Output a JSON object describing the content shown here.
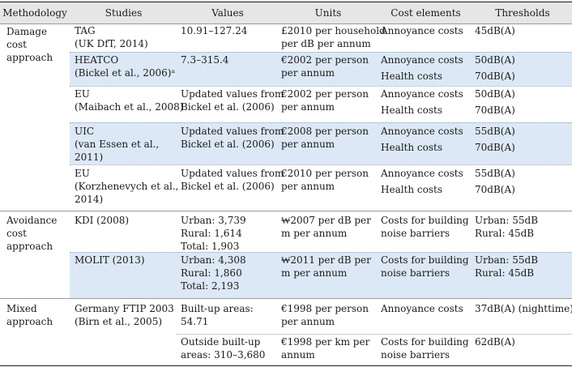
{
  "headers": {
    "methodology": "Methodology",
    "studies": "Studies",
    "values": "Values",
    "units": "Units",
    "cost": "Cost elements",
    "thresholds": "Thresholds"
  },
  "methodologies": {
    "damage": [
      "Damage",
      "cost",
      "approach"
    ],
    "avoidance": [
      "Avoidance",
      "cost",
      "approach"
    ],
    "mixed": [
      "Mixed",
      "approach"
    ]
  },
  "rows": [
    {
      "study": [
        "TAG",
        "(UK DfT, 2014)"
      ],
      "values": [
        "10.91–127.24"
      ],
      "units": [
        "£2010 per household",
        "per dB per annum"
      ],
      "cost": [
        "Annoyance costs"
      ],
      "thr": [
        "45dB(A)"
      ]
    },
    {
      "study": [
        "HEATCO",
        "(Bickel et al., 2006)ᵃ"
      ],
      "values": [
        "7.3–315.4"
      ],
      "units": [
        "€2002 per person",
        "per annum"
      ],
      "cost": [
        "Annoyance costs",
        "Health costs"
      ],
      "thr": [
        "50dB(A)",
        "70dB(A)"
      ]
    },
    {
      "study": [
        "EU",
        "(Maibach et al., 2008)"
      ],
      "values": [
        "Updated values from",
        "Bickel et al. (2006)"
      ],
      "units": [
        "€2002 per person",
        "per annum"
      ],
      "cost": [
        "Annoyance costs",
        "Health costs"
      ],
      "thr": [
        "50dB(A)",
        "70dB(A)"
      ]
    },
    {
      "study": [
        "UIC",
        "(van Essen et al.,",
        "2011)"
      ],
      "values": [
        "Updated values from",
        "Bickel et al. (2006)"
      ],
      "units": [
        "€2008 per person",
        "per annum"
      ],
      "cost": [
        "Annoyance costs",
        "Health costs"
      ],
      "thr": [
        "55dB(A)",
        "70dB(A)"
      ]
    },
    {
      "study": [
        "EU",
        "(Korzhenevych et al.,",
        "2014)"
      ],
      "values": [
        "Updated values from",
        "Bickel et al. (2006)"
      ],
      "units": [
        "€2010 per person",
        "per annum"
      ],
      "cost": [
        "Annoyance costs",
        "Health costs"
      ],
      "thr": [
        "55dB(A)",
        "70dB(A)"
      ]
    },
    {
      "study": [
        "KDI (2008)"
      ],
      "values": [
        "Urban: 3,739",
        "Rural: 1,614",
        "Total: 1,903"
      ],
      "units": [
        "₩2007 per dB per",
        "m per annum"
      ],
      "cost": [
        "Costs for building",
        "noise barriers"
      ],
      "thr": [
        "Urban: 55dB",
        "Rural: 45dB"
      ]
    },
    {
      "study": [
        "MOLIT (2013)"
      ],
      "values": [
        "Urban: 4,308",
        "Rural: 1,860",
        "Total: 2,193"
      ],
      "units": [
        "₩2011 per dB per",
        "m per annum"
      ],
      "cost": [
        "Costs for building",
        "noise barriers"
      ],
      "thr": [
        "Urban: 55dB",
        "Rural: 45dB"
      ]
    },
    {
      "study": [
        "Germany FTIP 2003",
        "(Birn et al., 2005)"
      ],
      "values": [
        "Built-up areas:",
        "54.71"
      ],
      "units": [
        "€1998 per person",
        "per annum"
      ],
      "cost": [
        "Annoyance costs"
      ],
      "thr": [
        "37dB(A) (nighttime)"
      ]
    },
    {
      "study": [],
      "values": [
        "Outside built-up",
        "areas: 310–3,680"
      ],
      "units": [
        "€1998 per km per",
        "annum"
      ],
      "cost": [
        "Costs for building",
        "noise barriers"
      ],
      "thr": [
        "62dB(A)"
      ]
    }
  ]
}
